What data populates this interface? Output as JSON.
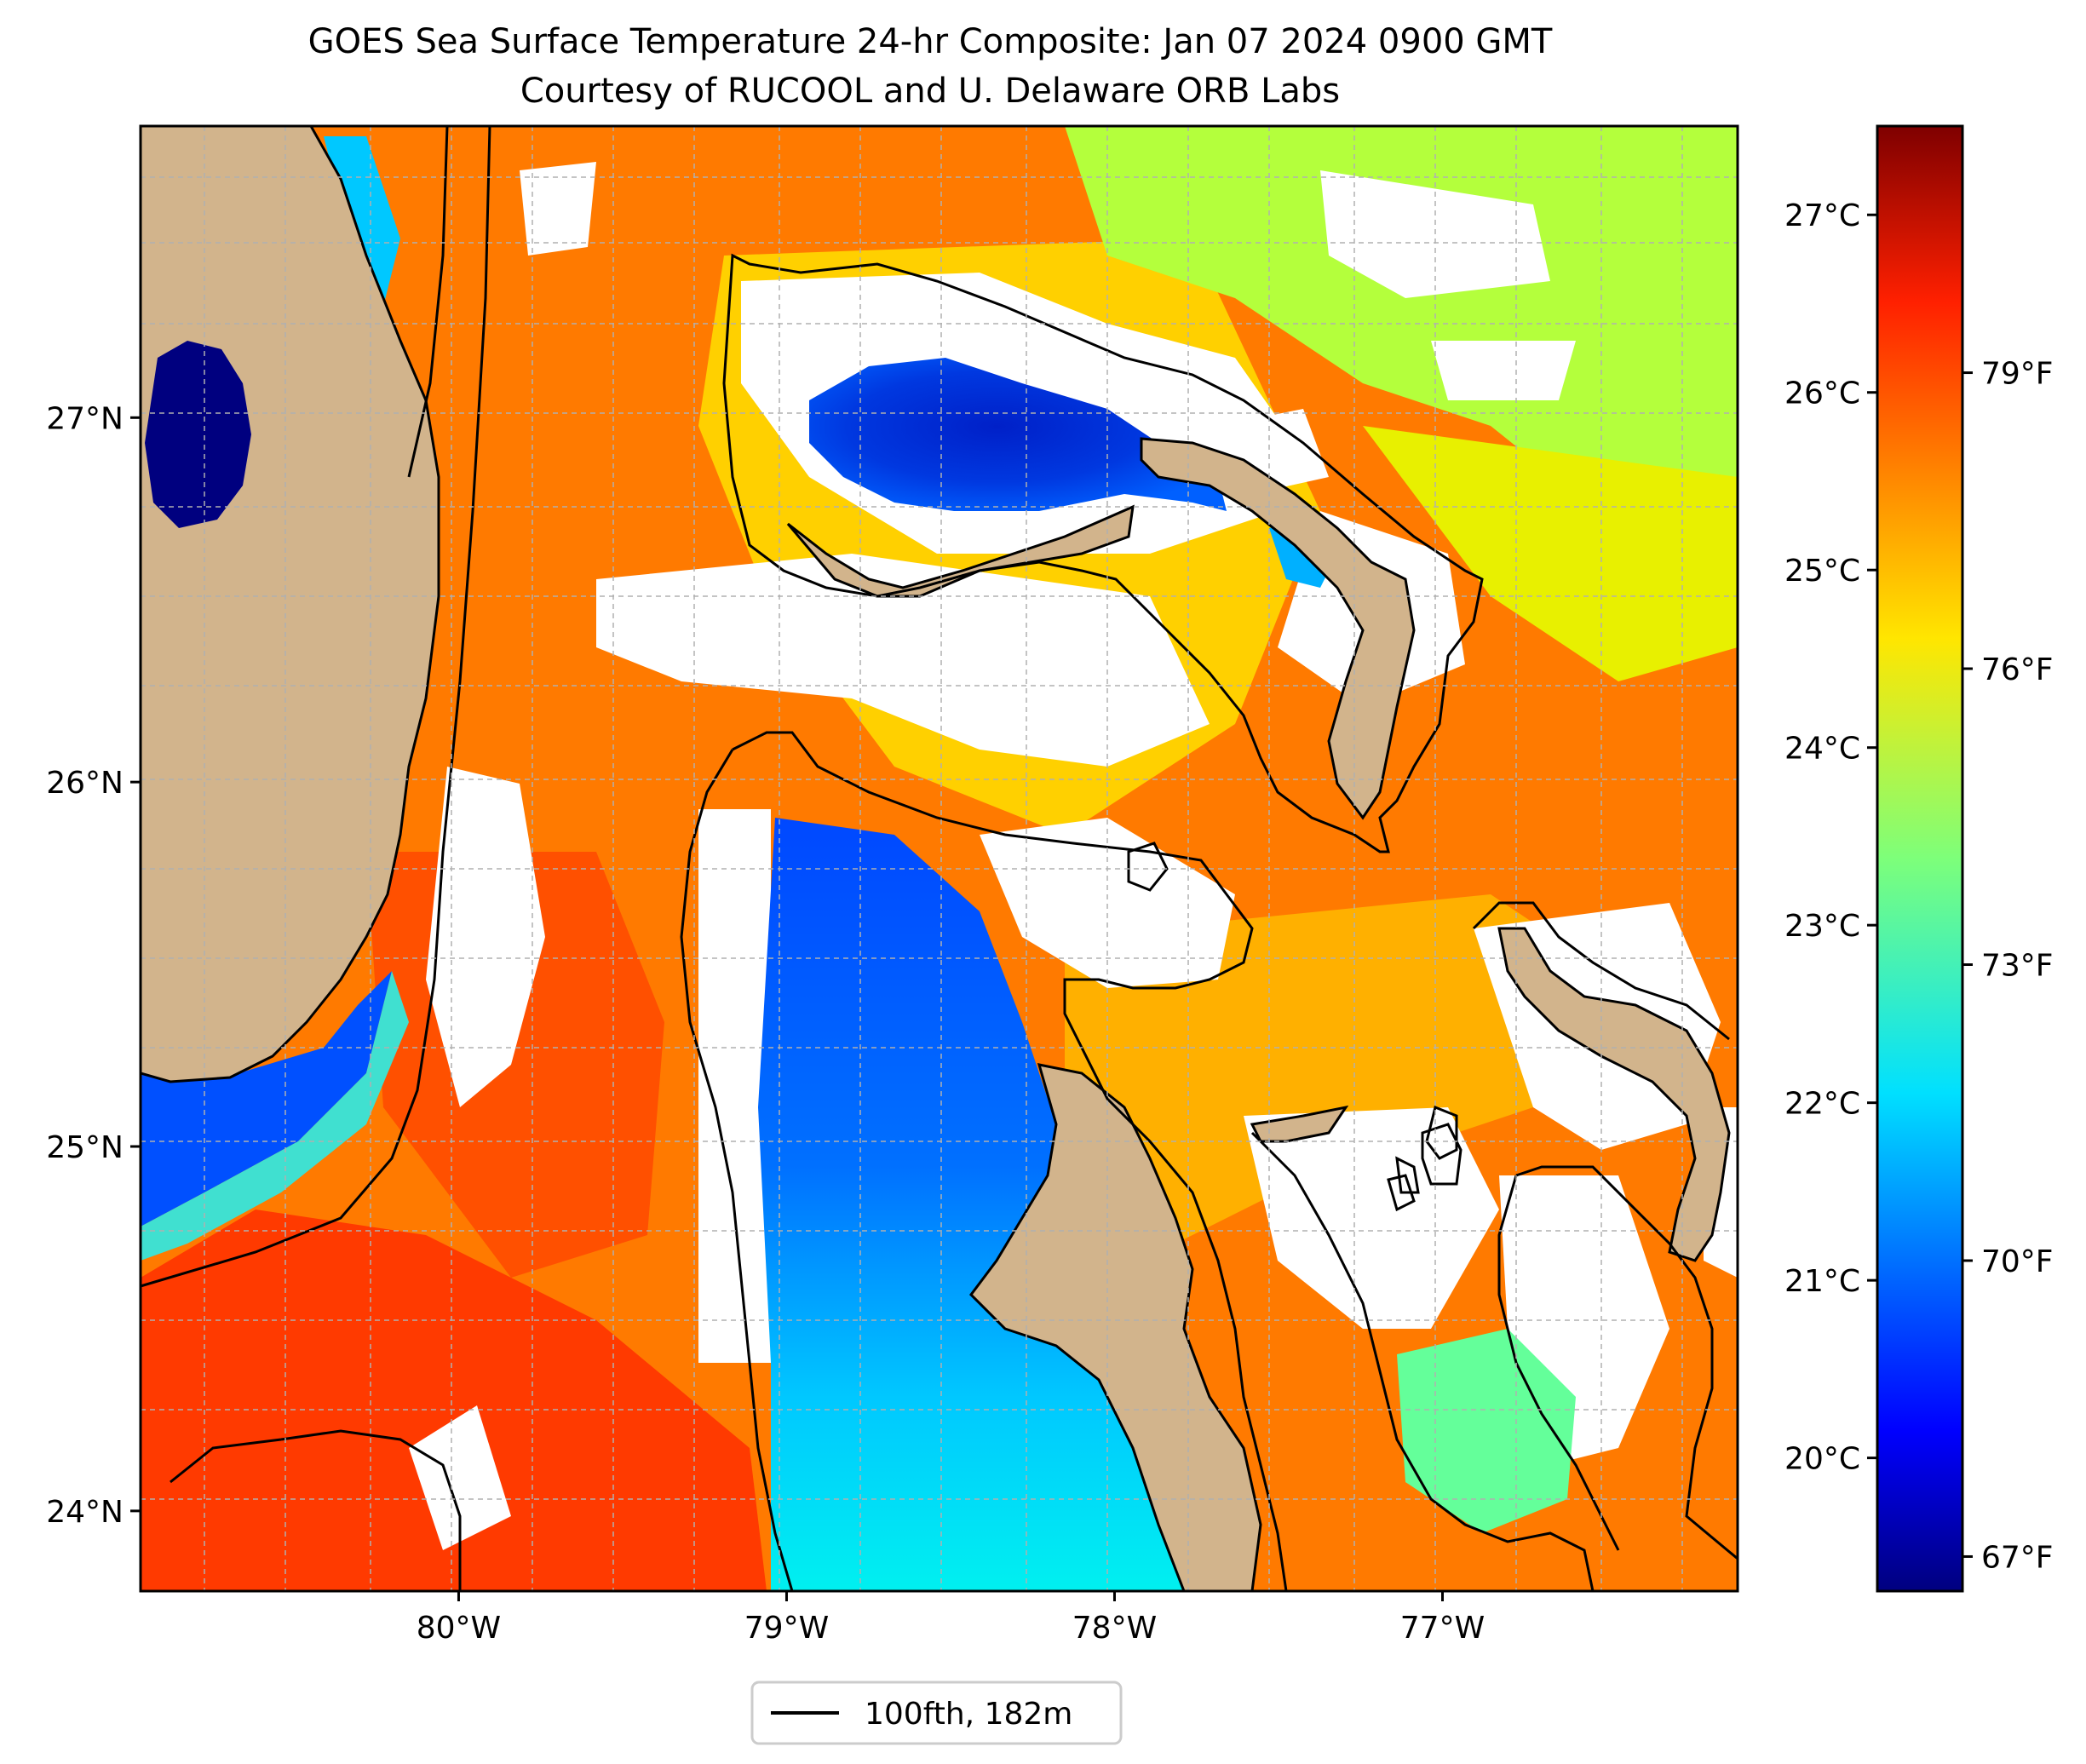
{
  "title": {
    "line1": "GOES Sea Surface Temperature 24-hr Composite: Jan 07 2024 0900 GMT",
    "line2": "Courtesy of RUCOOL and U. Delaware ORB Labs"
  },
  "map": {
    "lon_range": [
      -80.97,
      -76.1
    ],
    "lat_range": [
      23.78,
      27.8
    ],
    "lat_ticks": [
      {
        "value": 27,
        "label": "27°N"
      },
      {
        "value": 26,
        "label": "26°N"
      },
      {
        "value": 25,
        "label": "25°N"
      },
      {
        "value": 24,
        "label": "24°N"
      }
    ],
    "lon_ticks": [
      {
        "value": -80,
        "label": "80°W"
      },
      {
        "value": -79,
        "label": "79°W"
      },
      {
        "value": -78,
        "label": "78°W"
      },
      {
        "value": -77,
        "label": "77°W"
      }
    ],
    "grid": true,
    "no_data_color": "#ffffff",
    "land_color": "#d2b48c"
  },
  "colorbar": {
    "colormap": "jet",
    "celsius_ticks": [
      {
        "value": 27,
        "label": "27°C"
      },
      {
        "value": 26,
        "label": "26°C"
      },
      {
        "value": 25,
        "label": "25°C"
      },
      {
        "value": 24,
        "label": "24°C"
      },
      {
        "value": 23,
        "label": "23°C"
      },
      {
        "value": 22,
        "label": "22°C"
      },
      {
        "value": 21,
        "label": "21°C"
      },
      {
        "value": 20,
        "label": "20°C"
      }
    ],
    "fahrenheit_ticks": [
      {
        "value": 79,
        "label": "79°F"
      },
      {
        "value": 76,
        "label": "76°F"
      },
      {
        "value": 73,
        "label": "73°F"
      },
      {
        "value": 70,
        "label": "70°F"
      },
      {
        "value": 67,
        "label": "67°F"
      }
    ],
    "range_c": [
      19.25,
      27.5
    ]
  },
  "legend": {
    "label": "100fth, 182m",
    "placement": "bottom-center"
  }
}
